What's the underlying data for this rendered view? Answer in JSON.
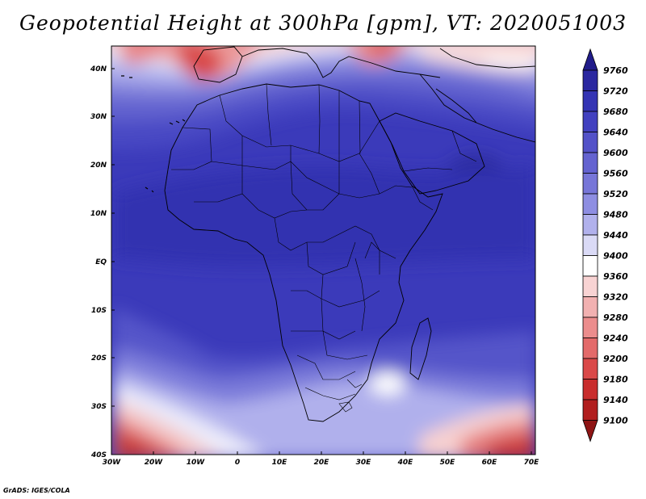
{
  "title": "Geopotential Height at 300hPa [gpm], VT: 2020051003",
  "credit": "GrADS: IGES/COLA",
  "map": {
    "lon_range": [
      -30,
      75
    ],
    "lat_range": [
      -40,
      45
    ],
    "lon_ticks": [
      "30W",
      "20W",
      "10W",
      "0",
      "10E",
      "20E",
      "30E",
      "40E",
      "50E",
      "60E",
      "70E"
    ],
    "lat_ticks": [
      "40N",
      "30N",
      "20N",
      "10N",
      "EQ",
      "10S",
      "20S",
      "30S",
      "40S"
    ]
  },
  "colorbar": {
    "levels": [
      "9760",
      "9720",
      "9680",
      "9640",
      "9600",
      "9560",
      "9520",
      "9480",
      "9440",
      "9400",
      "9360",
      "9320",
      "9280",
      "9240",
      "9200",
      "9180",
      "9140",
      "9100"
    ],
    "colors": [
      "#211c8a",
      "#2a27a0",
      "#3434b4",
      "#4241c0",
      "#5352c8",
      "#6463d0",
      "#7776d8",
      "#8e8ee2",
      "#b1b1ec",
      "#dadaf6",
      "#ffffff",
      "#f8d3d3",
      "#f2b1b1",
      "#ec8d8d",
      "#e36a6a",
      "#da4949",
      "#c92d2d",
      "#b11e1e",
      "#8e1414"
    ]
  }
}
